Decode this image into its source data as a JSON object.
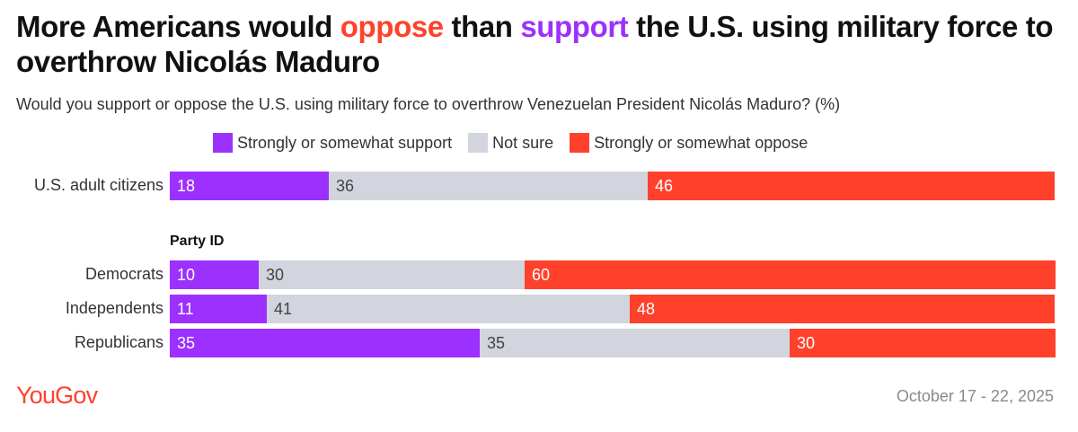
{
  "title": {
    "part1": "More Americans would ",
    "oppose_word": "oppose",
    "part2": " than ",
    "support_word": "support",
    "part3": " the U.S. using military force to overthrow Nicolás Maduro"
  },
  "subtitle": "Would you support or oppose the U.S. using military force to overthrow Venezuelan President Nicolás Maduro? (%)",
  "colors": {
    "support": "#9b30ff",
    "not_sure": "#d2d4de",
    "oppose": "#ff412c"
  },
  "chart_data": {
    "type": "bar",
    "orientation": "horizontal-stacked",
    "title": "More Americans would oppose than support the U.S. using military force to overthrow Nicolás Maduro",
    "legend": [
      {
        "key": "support",
        "label": "Strongly or somewhat support"
      },
      {
        "key": "not_sure",
        "label": "Not sure"
      },
      {
        "key": "oppose",
        "label": "Strongly or somewhat oppose"
      }
    ],
    "group_label": "Party ID",
    "rows": [
      {
        "label": "U.S. adult citizens",
        "group": "overall",
        "values": {
          "support": 18,
          "not_sure": 36,
          "oppose": 46
        }
      },
      {
        "label": "Democrats",
        "group": "party",
        "values": {
          "support": 10,
          "not_sure": 30,
          "oppose": 60
        }
      },
      {
        "label": "Independents",
        "group": "party",
        "values": {
          "support": 11,
          "not_sure": 41,
          "oppose": 48
        }
      },
      {
        "label": "Republicans",
        "group": "party",
        "values": {
          "support": 35,
          "not_sure": 35,
          "oppose": 30
        }
      }
    ],
    "xlim": [
      0,
      100
    ]
  },
  "footer": {
    "brand": "YouGov",
    "date": "October 17 - 22, 2025"
  }
}
